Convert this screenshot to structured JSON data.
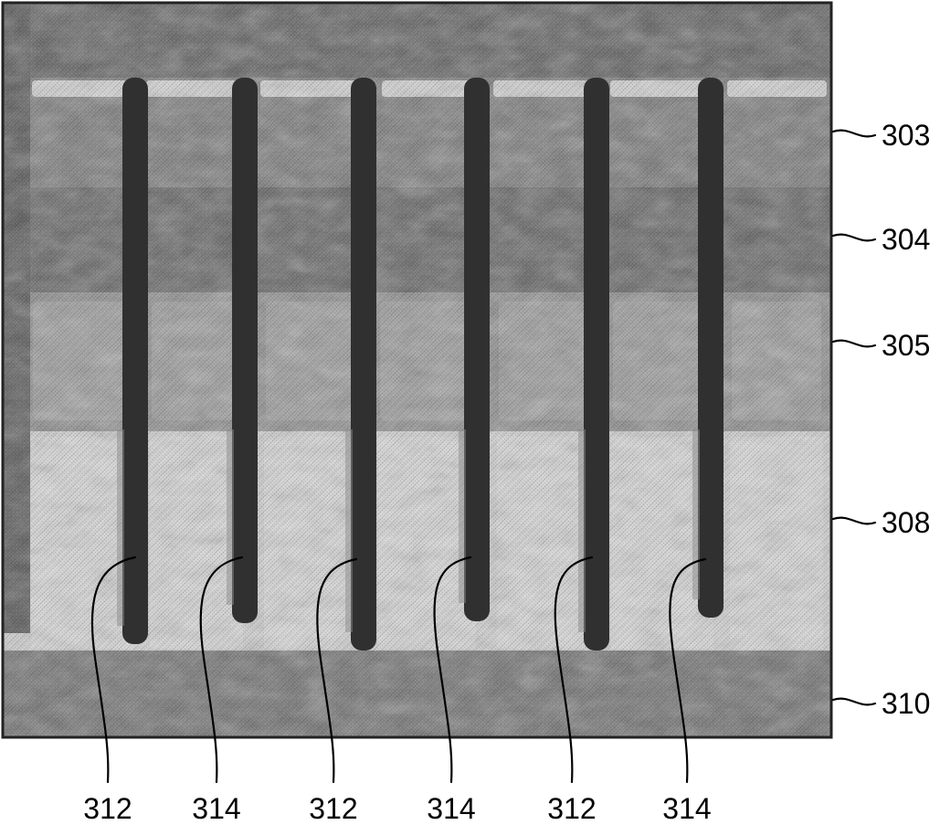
{
  "figure": {
    "layers": [
      {
        "ref": "303",
        "tone": "#767676"
      },
      {
        "ref": "304",
        "tone": "#5e5e5e"
      },
      {
        "ref": "305",
        "tone": "#8a8a8a"
      },
      {
        "ref": "308",
        "tone": "#d2d2d2"
      },
      {
        "ref": "310",
        "tone": "#6c6c6c"
      }
    ],
    "trenches": [
      {
        "ref": "312"
      },
      {
        "ref": "314"
      },
      {
        "ref": "312"
      },
      {
        "ref": "314"
      },
      {
        "ref": "312"
      },
      {
        "ref": "314"
      }
    ],
    "colors": {
      "trench": "#303030",
      "border": "#222222",
      "highlight": "#e6e6e6"
    }
  }
}
